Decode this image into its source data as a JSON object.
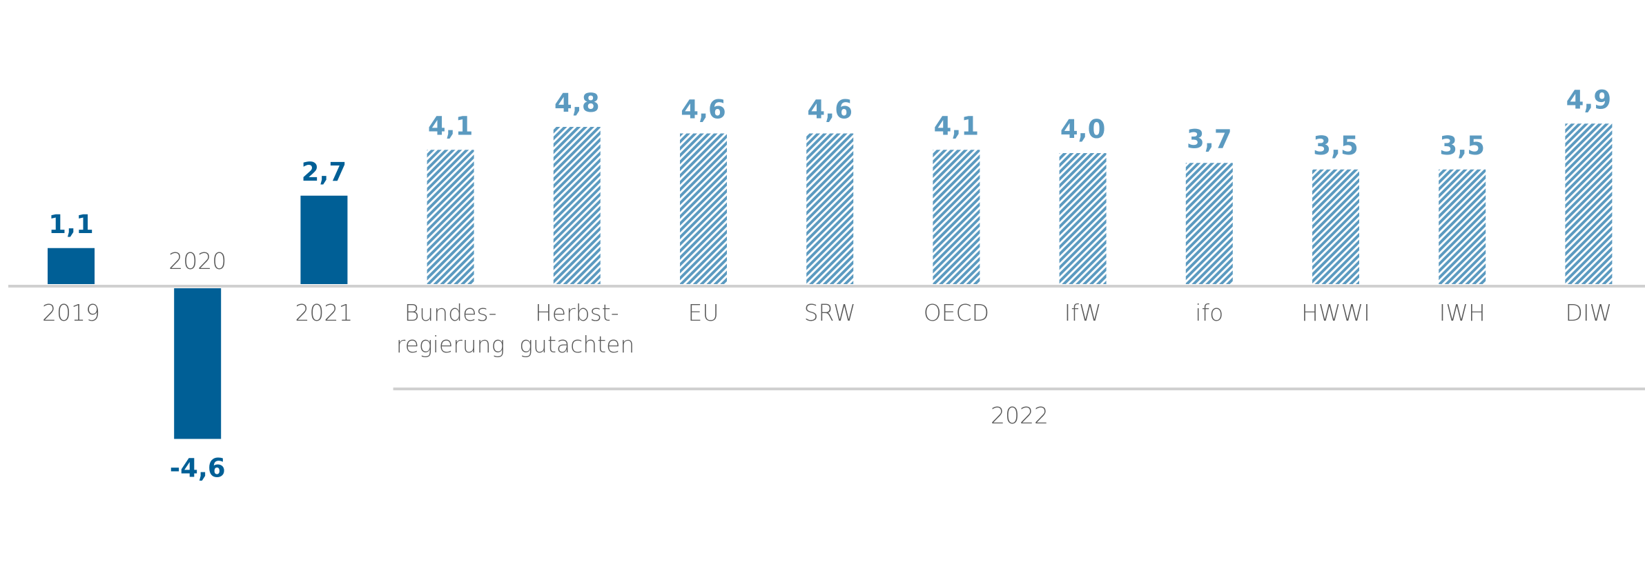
{
  "chart_data": {
    "type": "bar",
    "categories": [
      "2019",
      "2020",
      "2021",
      "Bundes-\nregierung",
      "Herbst-\ngutachten",
      "EU",
      "SRW",
      "OECD",
      "IfW",
      "ifo",
      "HWWI",
      "IWH",
      "DIW"
    ],
    "values": [
      1.1,
      -4.6,
      2.7,
      4.1,
      4.8,
      4.6,
      4.6,
      4.1,
      4.0,
      3.7,
      3.5,
      3.5,
      4.9
    ],
    "value_labels": [
      "1,1",
      "-4,6",
      "2,7",
      "4,1",
      "4,8",
      "4,6",
      "4,6",
      "4,1",
      "4,0",
      "3,7",
      "3,5",
      "3,5",
      "4,9"
    ],
    "colors": [
      "#005f96",
      "#005f96",
      "#005f96",
      "#5b9ac0",
      "#5b9ac0",
      "#5b9ac0",
      "#5b9ac0",
      "#5b9ac0",
      "#5b9ac0",
      "#5b9ac0",
      "#5b9ac0",
      "#5b9ac0",
      "#5b9ac0"
    ],
    "hatched": [
      false,
      false,
      false,
      true,
      true,
      true,
      true,
      true,
      true,
      true,
      true,
      true,
      true
    ],
    "group_label": "2022"
  }
}
